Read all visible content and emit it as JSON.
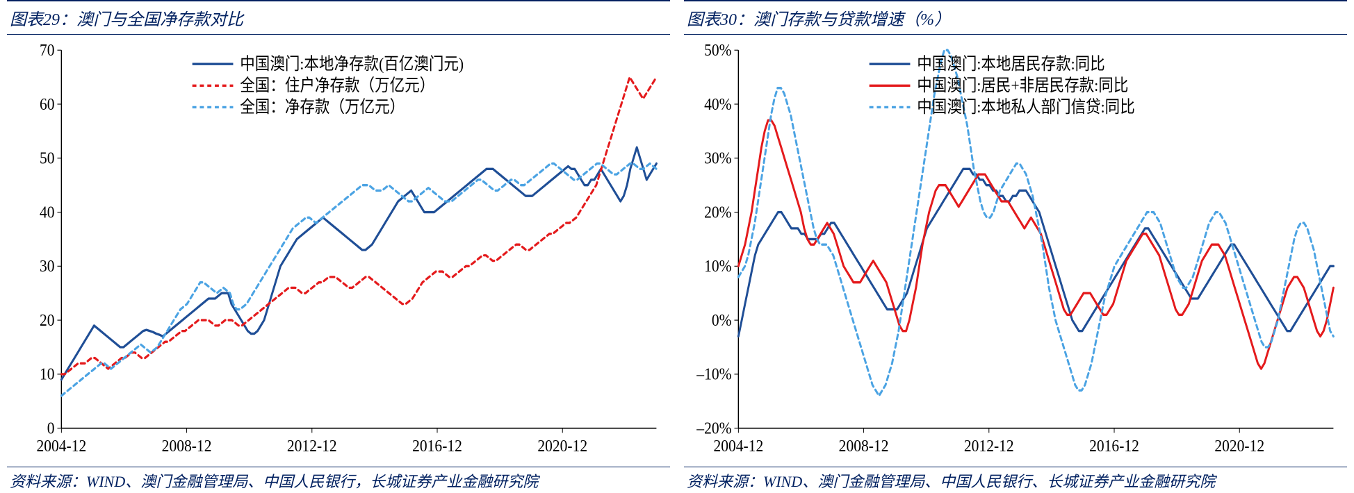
{
  "left": {
    "title_idx": "图表29：",
    "title_text": "澳门与全国净存款对比",
    "source": "资料来源：WIND、澳门金融管理局、中国人民银行，长城证券产业金融研究院",
    "chart": {
      "type": "line",
      "background_color": "#ffffff",
      "x_start": "2004-12",
      "x_end": "2023-12",
      "x_ticks": [
        "2004-12",
        "2008-12",
        "2012-12",
        "2016-12",
        "2020-12"
      ],
      "ylim": [
        0,
        70
      ],
      "ytick_step": 10,
      "y_ticks": [
        0,
        10,
        20,
        30,
        40,
        50,
        60,
        70
      ],
      "tick_fontsize": 22,
      "line_width": 3,
      "series": [
        {
          "label": "中国澳门:本地净存款(百亿澳门元)",
          "color": "#1f4e96",
          "dash": "solid",
          "data": [
            9,
            10,
            11,
            12,
            13,
            14,
            15,
            16,
            17,
            18,
            19,
            18.5,
            18,
            17.5,
            17,
            16.5,
            16,
            15.5,
            15,
            15,
            15.5,
            16,
            16.5,
            17,
            17.5,
            18,
            18.2,
            18,
            17.8,
            17.5,
            17.3,
            17,
            17.5,
            18,
            18.5,
            19,
            19.5,
            20,
            20.5,
            21,
            21.5,
            22,
            22.5,
            23,
            23.5,
            24,
            24,
            24,
            24.5,
            25,
            25,
            25,
            23,
            22,
            21,
            20,
            19,
            18,
            17.5,
            17.5,
            18,
            19,
            20,
            22,
            24,
            26,
            28,
            30,
            31,
            32,
            33,
            34,
            35,
            35.5,
            36,
            36.5,
            37,
            37.5,
            38,
            38.5,
            39,
            38.5,
            38,
            37.5,
            37,
            36.5,
            36,
            35.5,
            35,
            34.5,
            34,
            33.5,
            33,
            33,
            33.5,
            34,
            35,
            36,
            37,
            38,
            39,
            40,
            41,
            42,
            42.5,
            43,
            43.5,
            44,
            43,
            42,
            41,
            40,
            40,
            40,
            40,
            40.5,
            41,
            41.5,
            42,
            42.5,
            43,
            43.5,
            44,
            44.5,
            45,
            45.5,
            46,
            46.5,
            47,
            47.5,
            48,
            48,
            48,
            47.5,
            47,
            46.5,
            46,
            45.5,
            45,
            44.5,
            44,
            43.5,
            43,
            43,
            43,
            43.5,
            44,
            44.5,
            45,
            45.5,
            46,
            46.5,
            47,
            47.5,
            48,
            48.5,
            48,
            48,
            47,
            46,
            45,
            45,
            46,
            46,
            47,
            48,
            47,
            46,
            45,
            44,
            43,
            42,
            43,
            45,
            48,
            50,
            52,
            50,
            48,
            46,
            47,
            48,
            49
          ]
        },
        {
          "label": "全国：住户净存款（万亿元）",
          "color": "#e41a1c",
          "dash": "6,5",
          "data": [
            10,
            10,
            10.5,
            11,
            11.5,
            12,
            12,
            12,
            12.5,
            13,
            13,
            12.5,
            12,
            11.5,
            11,
            11.5,
            12,
            12.5,
            13,
            13,
            13.5,
            14,
            14,
            13.5,
            13,
            13,
            13.5,
            14,
            14.5,
            15,
            15.5,
            16,
            16,
            16.5,
            17,
            17.5,
            18,
            18,
            18.5,
            19,
            19.5,
            20,
            20,
            20,
            20,
            19.5,
            19,
            19,
            19.5,
            20,
            20,
            20,
            19.5,
            19,
            19,
            19.5,
            20,
            20.5,
            21,
            21.5,
            22,
            22.5,
            23,
            23.5,
            24,
            24.5,
            25,
            25.5,
            26,
            26,
            26,
            25.5,
            25,
            25,
            25.5,
            26,
            26.5,
            27,
            27,
            27.5,
            28,
            28,
            28,
            27.5,
            27,
            26.5,
            26,
            26,
            26.5,
            27,
            27.5,
            28,
            28,
            27.5,
            27,
            26.5,
            26,
            25.5,
            25,
            24.5,
            24,
            23.5,
            23,
            23,
            23.5,
            24,
            25,
            26,
            27,
            27.5,
            28,
            28.5,
            29,
            29,
            29,
            28.5,
            28,
            28,
            28.5,
            29,
            29.5,
            30,
            30,
            30.5,
            31,
            31.5,
            32,
            32,
            31.5,
            31,
            31,
            31.5,
            32,
            32.5,
            33,
            33.5,
            34,
            34,
            33.5,
            33,
            33,
            33.5,
            34,
            34.5,
            35,
            35.5,
            36,
            36,
            36.5,
            37,
            37.5,
            38,
            38,
            38.5,
            39,
            40,
            41,
            42,
            43,
            44,
            45,
            47,
            49,
            51,
            53,
            55,
            57,
            59,
            61,
            63,
            65,
            64,
            63,
            62,
            61,
            62,
            63,
            64,
            65
          ]
        },
        {
          "label": "全国：净存款（万亿元）",
          "color": "#4ba3e3",
          "dash": "6,5",
          "data": [
            6,
            6.5,
            7,
            7.5,
            8,
            8.5,
            9,
            9.5,
            10,
            10.5,
            11,
            11.5,
            12,
            12,
            11.5,
            11,
            11.5,
            12,
            12.5,
            13,
            13.5,
            14,
            14.5,
            15,
            15.5,
            15,
            14.5,
            14,
            14.5,
            15,
            16,
            17,
            18,
            19,
            20,
            21,
            22,
            22.5,
            23,
            24,
            25,
            26,
            27,
            27,
            26.5,
            26,
            25.5,
            25,
            25.5,
            26,
            25.5,
            25,
            23,
            22,
            22,
            22.5,
            23,
            24,
            25,
            26,
            27,
            28,
            29,
            30,
            31,
            32,
            33,
            34,
            35,
            36,
            37,
            37.5,
            38,
            38.5,
            39,
            39,
            38.5,
            38,
            38.5,
            39,
            39.5,
            40,
            40.5,
            41,
            41.5,
            42,
            42.5,
            43,
            43.5,
            44,
            44.5,
            45,
            45,
            45,
            44.5,
            44,
            44,
            44,
            44.5,
            45,
            44.5,
            44,
            43.5,
            43,
            42.5,
            42,
            42,
            42.5,
            43,
            43.5,
            44,
            44.5,
            44,
            43.5,
            43,
            42.5,
            42,
            42,
            42,
            42.5,
            43,
            43.5,
            44,
            44.5,
            45,
            45.5,
            46,
            46,
            45.5,
            45,
            44.5,
            44,
            44,
            44.5,
            45,
            45.5,
            46,
            46,
            45.5,
            45,
            45,
            45.5,
            46,
            46.5,
            47,
            47.5,
            48,
            48.5,
            49,
            49,
            48.5,
            48,
            47.5,
            47,
            46.5,
            46,
            46,
            46.5,
            47,
            47.5,
            48,
            48.5,
            49,
            49,
            48.5,
            48,
            47.5,
            47,
            47,
            47.5,
            48,
            48.5,
            49,
            49,
            48.5,
            48,
            48,
            48.5,
            49,
            48.5,
            48
          ]
        }
      ],
      "legend_pos": "top-center"
    }
  },
  "right": {
    "title_idx": "图表30：",
    "title_text": "澳门存款与贷款增速（%）",
    "source": "资料来源：WIND、澳门金融管理局、中国人民银行、长城证券产业金融研究院",
    "chart": {
      "type": "line",
      "background_color": "#ffffff",
      "x_start": "2004-12",
      "x_end": "2023-12",
      "x_ticks": [
        "2004-12",
        "2008-12",
        "2012-12",
        "2016-12",
        "2020-12"
      ],
      "ylim": [
        -20,
        50
      ],
      "ytick_step": 10,
      "y_ticks": [
        -20,
        -10,
        0,
        10,
        20,
        30,
        40,
        50
      ],
      "y_suffix": "%",
      "tick_fontsize": 22,
      "line_width": 3,
      "series": [
        {
          "label": "中国澳门:本地居民存款:同比",
          "color": "#1f4e96",
          "dash": "solid",
          "data": [
            -3,
            0,
            3,
            6,
            9,
            12,
            14,
            15,
            16,
            17,
            18,
            19,
            20,
            20,
            19,
            18,
            17,
            17,
            17,
            16,
            16,
            15,
            15,
            15,
            15,
            16,
            16,
            17,
            18,
            18,
            17,
            16,
            15,
            14,
            13,
            12,
            11,
            10,
            9,
            8,
            7,
            6,
            5,
            4,
            3,
            2,
            2,
            2,
            2,
            3,
            4,
            5,
            7,
            9,
            11,
            13,
            15,
            17,
            18,
            19,
            20,
            21,
            22,
            23,
            24,
            25,
            26,
            27,
            28,
            28,
            28,
            27,
            27,
            26,
            26,
            25,
            25,
            24,
            24,
            23,
            23,
            22,
            22,
            23,
            23,
            24,
            24,
            24,
            23,
            22,
            21,
            20,
            18,
            16,
            14,
            12,
            10,
            8,
            6,
            4,
            2,
            0,
            -1,
            -2,
            -2,
            -1,
            0,
            1,
            2,
            3,
            4,
            5,
            6,
            7,
            8,
            9,
            10,
            11,
            12,
            13,
            14,
            15,
            16,
            17,
            17,
            16,
            15,
            14,
            13,
            12,
            11,
            10,
            9,
            8,
            7,
            6,
            5,
            4,
            4,
            4,
            5,
            6,
            7,
            8,
            9,
            10,
            11,
            12,
            13,
            14,
            14,
            13,
            12,
            11,
            10,
            9,
            8,
            7,
            6,
            5,
            4,
            3,
            2,
            1,
            0,
            -1,
            -2,
            -2,
            -1,
            0,
            1,
            2,
            3,
            4,
            5,
            6,
            7,
            8,
            9,
            10,
            10
          ]
        },
        {
          "label": "中国澳门:居民+非居民存款:同比",
          "color": "#e41a1c",
          "dash": "solid",
          "data": [
            10,
            12,
            14,
            17,
            20,
            24,
            28,
            32,
            35,
            37,
            37,
            36,
            34,
            32,
            30,
            28,
            26,
            24,
            22,
            20,
            17,
            15,
            14,
            14,
            15,
            16,
            17,
            18,
            17,
            16,
            14,
            12,
            10,
            9,
            8,
            7,
            7,
            7,
            8,
            9,
            10,
            11,
            10,
            9,
            8,
            7,
            5,
            3,
            1,
            -1,
            -2,
            -2,
            0,
            3,
            6,
            10,
            14,
            17,
            20,
            22,
            24,
            25,
            25,
            25,
            24,
            23,
            22,
            21,
            22,
            23,
            24,
            25,
            26,
            27,
            27,
            27,
            26,
            25,
            24,
            23,
            22,
            22,
            22,
            21,
            20,
            19,
            18,
            17,
            18,
            19,
            18,
            17,
            16,
            14,
            12,
            10,
            8,
            6,
            4,
            2,
            1,
            1,
            2,
            3,
            4,
            5,
            5,
            5,
            4,
            3,
            2,
            1,
            1,
            2,
            3,
            5,
            7,
            9,
            11,
            12,
            13,
            14,
            15,
            16,
            16,
            15,
            14,
            13,
            12,
            10,
            8,
            6,
            4,
            2,
            1,
            1,
            2,
            3,
            5,
            7,
            9,
            11,
            12,
            13,
            14,
            14,
            14,
            13,
            12,
            10,
            8,
            6,
            4,
            2,
            0,
            -2,
            -4,
            -6,
            -8,
            -9,
            -8,
            -6,
            -4,
            -2,
            0,
            2,
            4,
            6,
            7,
            8,
            8,
            7,
            6,
            4,
            2,
            0,
            -2,
            -3,
            -2,
            0,
            3,
            6
          ]
        },
        {
          "label": "中国澳门:本地私人部门信贷:同比",
          "color": "#4ba3e3",
          "dash": "6,5",
          "data": [
            8,
            9,
            10,
            12,
            15,
            18,
            22,
            26,
            30,
            34,
            38,
            41,
            43,
            43,
            42,
            40,
            38,
            35,
            32,
            29,
            26,
            23,
            20,
            17,
            15,
            14,
            14,
            14,
            13,
            12,
            10,
            8,
            6,
            4,
            2,
            0,
            -2,
            -4,
            -6,
            -8,
            -10,
            -12,
            -13,
            -14,
            -13,
            -12,
            -10,
            -8,
            -5,
            -2,
            2,
            6,
            10,
            14,
            18,
            22,
            26,
            30,
            34,
            38,
            42,
            45,
            48,
            50,
            50,
            49,
            47,
            45,
            42,
            39,
            36,
            32,
            28,
            25,
            22,
            20,
            19,
            19,
            20,
            22,
            24,
            25,
            26,
            27,
            28,
            29,
            29,
            28,
            27,
            25,
            23,
            20,
            17,
            14,
            10,
            6,
            3,
            0,
            -2,
            -4,
            -6,
            -8,
            -10,
            -12,
            -13,
            -13,
            -12,
            -10,
            -8,
            -5,
            -2,
            1,
            4,
            6,
            8,
            10,
            11,
            12,
            13,
            14,
            15,
            16,
            17,
            18,
            19,
            20,
            20,
            20,
            19,
            18,
            16,
            14,
            12,
            10,
            8,
            7,
            6,
            6,
            7,
            8,
            10,
            12,
            14,
            16,
            18,
            19,
            20,
            20,
            19,
            18,
            16,
            14,
            12,
            10,
            8,
            6,
            4,
            2,
            0,
            -2,
            -4,
            -5,
            -5,
            -4,
            -2,
            0,
            3,
            6,
            9,
            12,
            15,
            17,
            18,
            18,
            17,
            15,
            13,
            10,
            7,
            4,
            1,
            -2,
            -3
          ]
        }
      ],
      "legend_pos": "top-center"
    }
  }
}
